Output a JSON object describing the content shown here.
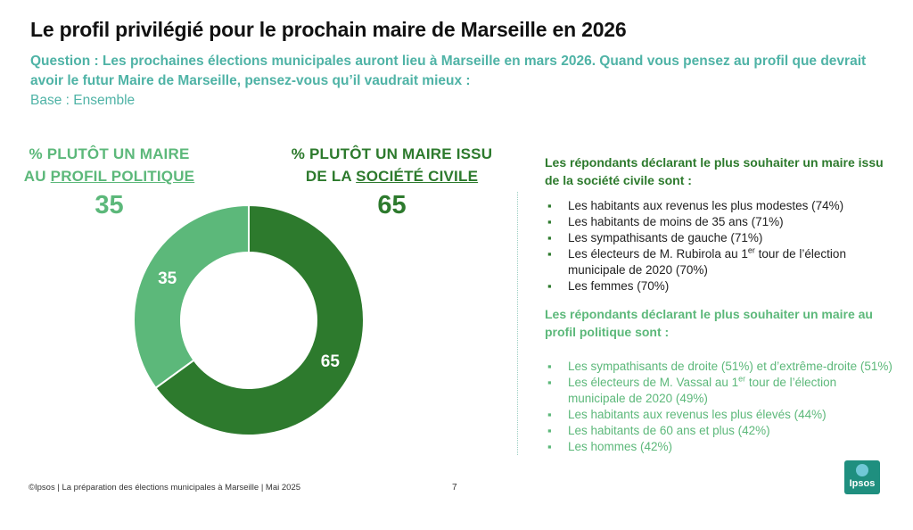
{
  "title": "Le profil privilégié pour le prochain maire de Marseille en 2026",
  "question": "Question : Les prochaines élections municipales auront lieu à Marseille en mars 2026. Quand vous pensez au profil que devrait avoir le futur Maire de Marseille, pensez-vous qu’il vaudrait mieux :",
  "base": "Base : Ensemble",
  "kpi_left": {
    "line1": "% PLUTÔT UN MAIRE",
    "line2_prefix": "AU ",
    "line2_underlined": "PROFIL POLITIQUE",
    "value": "35"
  },
  "kpi_right": {
    "line1": "% PLUTÔT UN MAIRE ISSU",
    "line2_prefix": "DE LA ",
    "line2_underlined": "SOCIÉTÉ CIVILE",
    "value": "65"
  },
  "chart_data": {
    "type": "pie",
    "donut": true,
    "categories": [
      "Plutôt un maire au profil politique",
      "Plutôt un maire issu de la société civile"
    ],
    "values": [
      35,
      65
    ],
    "labels": [
      "35",
      "65"
    ],
    "colors": [
      "#5cb87a",
      "#2d7a2d"
    ]
  },
  "section1": {
    "heading": "Les répondants déclarant le plus souhaiter un maire issu de la société civile sont :",
    "items": [
      "Les habitants aux revenus les plus modestes (74%)",
      "Les habitants de moins de 35 ans (71%)",
      "Les sympathisants de gauche (71%)",
      "Les électeurs de M. Rubirola au 1er tour de l’élection municipale de 2020 (70%)",
      "Les femmes (70%)"
    ]
  },
  "section2": {
    "heading": "Les répondants déclarant le plus souhaiter un maire au profil politique sont :",
    "items": [
      "Les sympathisants de droite (51%) et d’extrême-droite (51%)",
      "Les électeurs de M. Vassal au 1er tour de l’élection municipale de 2020 (49%)",
      "Les habitants aux revenus les plus élevés (44%)",
      "Les habitants de 60 ans et plus (42%)",
      "Les hommes (42%)"
    ]
  },
  "footer": "©Ipsos | La préparation des élections municipales à Marseille | Mai 2025",
  "page_number": "7",
  "logo_text": "Ipsos"
}
